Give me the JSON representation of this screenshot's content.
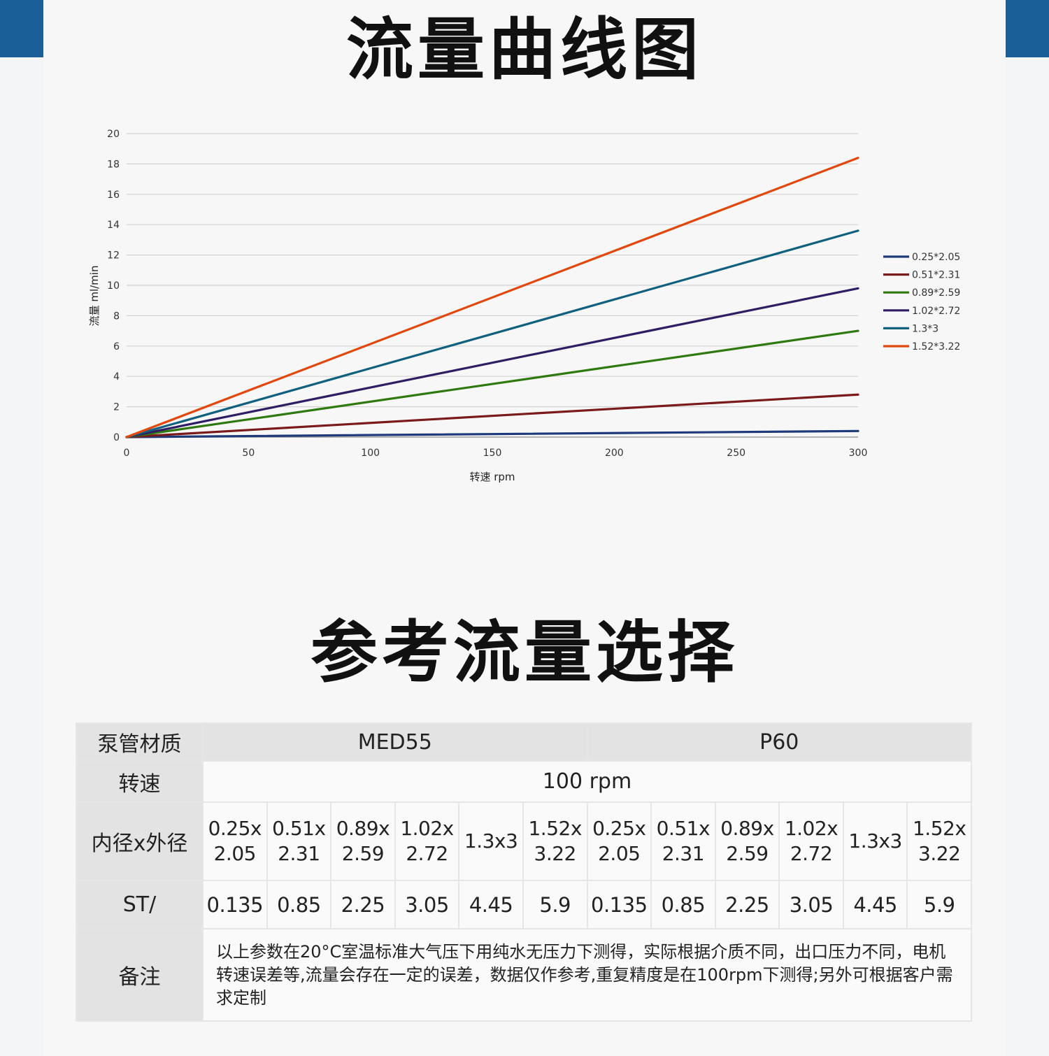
{
  "title_chart": "流量曲线图",
  "title_table": "参考流量选择",
  "chart_data": {
    "type": "line",
    "xlabel": "转速 rpm",
    "ylabel": "流量 ml/min",
    "xlim": [
      0,
      300
    ],
    "ylim": [
      0,
      20
    ],
    "xticks": [
      0,
      50,
      100,
      150,
      200,
      250,
      300
    ],
    "yticks": [
      0,
      2,
      4,
      6,
      8,
      10,
      12,
      14,
      16,
      18,
      20
    ],
    "grid": true,
    "legend_position": "right",
    "x": [
      0,
      300
    ],
    "series": [
      {
        "name": "0.25*2.05",
        "values": [
          0,
          0.4
        ],
        "color": "#1f3a7a"
      },
      {
        "name": "0.51*2.31",
        "values": [
          0,
          2.8
        ],
        "color": "#7a1a1a"
      },
      {
        "name": "0.89*2.59",
        "values": [
          0,
          7.0
        ],
        "color": "#2f7a10"
      },
      {
        "name": "1.02*2.72",
        "values": [
          0,
          9.8
        ],
        "color": "#2f1e63"
      },
      {
        "name": "1.3*3",
        "values": [
          0,
          13.6
        ],
        "color": "#10607e"
      },
      {
        "name": "1.52*3.22",
        "values": [
          0,
          18.4
        ],
        "color": "#e0480e"
      }
    ]
  },
  "table": {
    "material_label": "泵管材质",
    "materials": [
      "MED55",
      "P60"
    ],
    "speed_label": "转速",
    "speed_value": "100 rpm",
    "dims_label": "内径x外径",
    "dims": [
      [
        "0.25x",
        "2.05"
      ],
      [
        "0.51x",
        "2.31"
      ],
      [
        "0.89x",
        "2.59"
      ],
      [
        "1.02x",
        "2.72"
      ],
      [
        "1.3x3",
        ""
      ],
      [
        "1.52x",
        "3.22"
      ],
      [
        "0.25x",
        "2.05"
      ],
      [
        "0.51x",
        "2.31"
      ],
      [
        "0.89x",
        "2.59"
      ],
      [
        "1.02x",
        "2.72"
      ],
      [
        "1.3x3",
        ""
      ],
      [
        "1.52x",
        "3.22"
      ]
    ],
    "st_label": "ST/",
    "st_values": [
      "0.135",
      "0.85",
      "2.25",
      "3.05",
      "4.45",
      "5.9",
      "0.135",
      "0.85",
      "2.25",
      "3.05",
      "4.45",
      "5.9"
    ],
    "note_label": "备注",
    "note_text": "以上参数在20°C室温标准大气压下用纯水无压力下测得，实际根据介质不同，出口压力不同，电机转速误差等,流量会存在一定的误差，数据仅作参考,重复精度是在100rpm下测得;另外可根据客户需求定制"
  }
}
